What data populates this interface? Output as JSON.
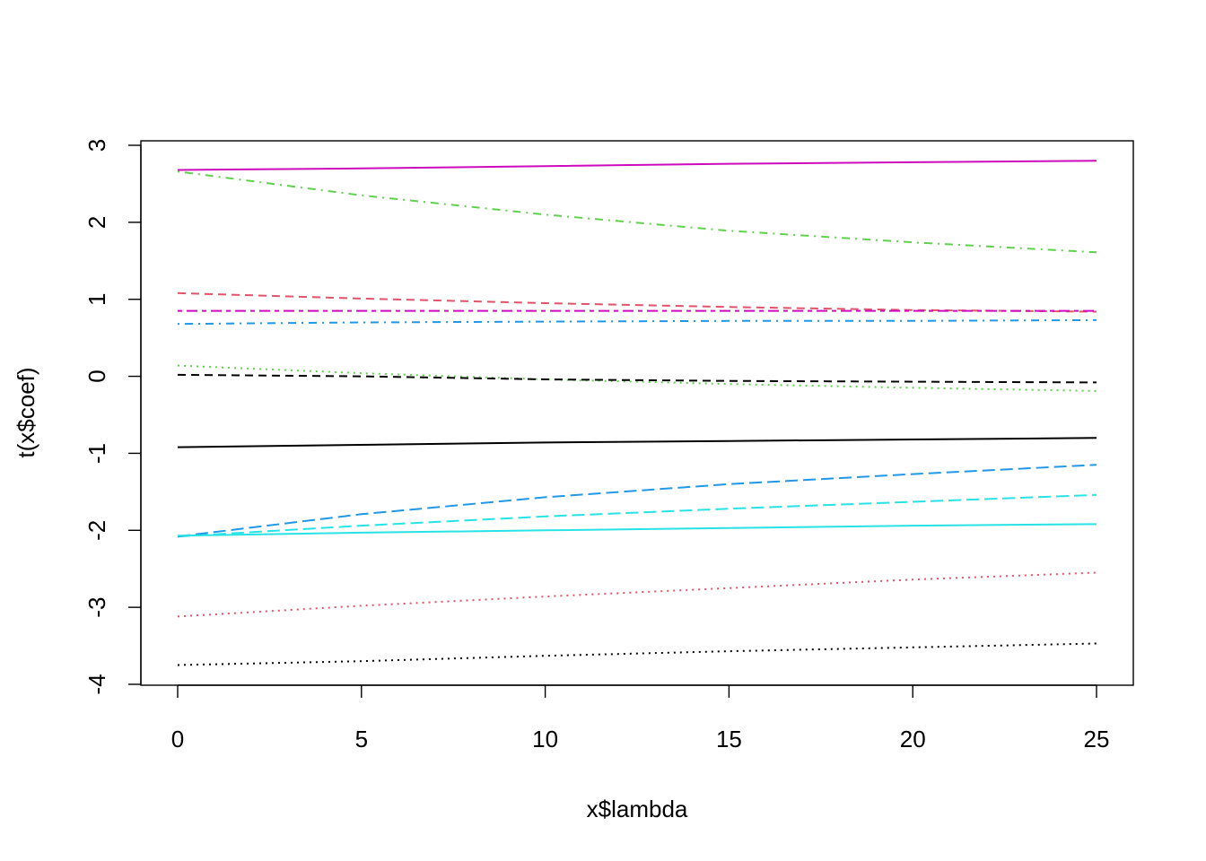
{
  "chart_data": {
    "type": "line",
    "xlabel": "x$lambda",
    "ylabel": "t(x$coef)",
    "xlim": [
      -1,
      26
    ],
    "ylim": [
      -4,
      3
    ],
    "x_ticks": [
      0,
      5,
      10,
      15,
      20,
      25
    ],
    "x_tick_labels": [
      "0",
      "5",
      "10",
      "15",
      "20",
      "25"
    ],
    "y_ticks": [
      -4,
      -3,
      -2,
      -1,
      0,
      1,
      2,
      3
    ],
    "y_tick_labels": [
      "-4",
      "-3",
      "-2",
      "-1",
      "0",
      "1",
      "2",
      "3"
    ],
    "grid": false,
    "legend": "none",
    "x": [
      0,
      5,
      10,
      15,
      20,
      25
    ],
    "series": [
      {
        "color": "#000000",
        "dash": "solid",
        "values": [
          -0.92,
          -0.89,
          -0.86,
          -0.84,
          -0.82,
          -0.8
        ]
      },
      {
        "color": "#DF536B",
        "dash": "dashed",
        "values": [
          1.08,
          1.01,
          0.95,
          0.9,
          0.86,
          0.84
        ]
      },
      {
        "color": "#61D04F",
        "dash": "dotted",
        "values": [
          0.14,
          0.04,
          -0.04,
          -0.1,
          -0.15,
          -0.19
        ]
      },
      {
        "color": "#2297E6",
        "dash": "dotdash",
        "values": [
          0.68,
          0.7,
          0.71,
          0.72,
          0.72,
          0.73
        ]
      },
      {
        "color": "#28E2E5",
        "dash": "longdash",
        "values": [
          -2.08,
          -1.94,
          -1.82,
          -1.72,
          -1.63,
          -1.54
        ]
      },
      {
        "color": "#CD0BBC",
        "dash": "twodash",
        "values": [
          0.85,
          0.85,
          0.85,
          0.85,
          0.85,
          0.85
        ]
      },
      {
        "color": "#000000",
        "dash": "dotted",
        "values": [
          -3.75,
          -3.7,
          -3.63,
          -3.57,
          -3.52,
          -3.47
        ]
      },
      {
        "color": "#2297E6",
        "dash": "longdash",
        "values": [
          -2.08,
          -1.79,
          -1.57,
          -1.4,
          -1.27,
          -1.15
        ]
      },
      {
        "color": "#CD0BBC",
        "dash": "solid",
        "values": [
          2.68,
          2.7,
          2.73,
          2.76,
          2.78,
          2.8
        ]
      },
      {
        "color": "#61D04F",
        "dash": "dotdash",
        "values": [
          2.66,
          2.35,
          2.1,
          1.89,
          1.74,
          1.61
        ]
      },
      {
        "color": "#000000",
        "dash": "dashed",
        "values": [
          0.02,
          0.0,
          -0.04,
          -0.06,
          -0.07,
          -0.08
        ]
      },
      {
        "color": "#28E2E5",
        "dash": "solid",
        "values": [
          -2.07,
          -2.03,
          -2.0,
          -1.97,
          -1.94,
          -1.92
        ]
      },
      {
        "color": "#DF536B",
        "dash": "dotted",
        "values": [
          -3.12,
          -2.98,
          -2.86,
          -2.75,
          -2.64,
          -2.55
        ]
      }
    ]
  }
}
